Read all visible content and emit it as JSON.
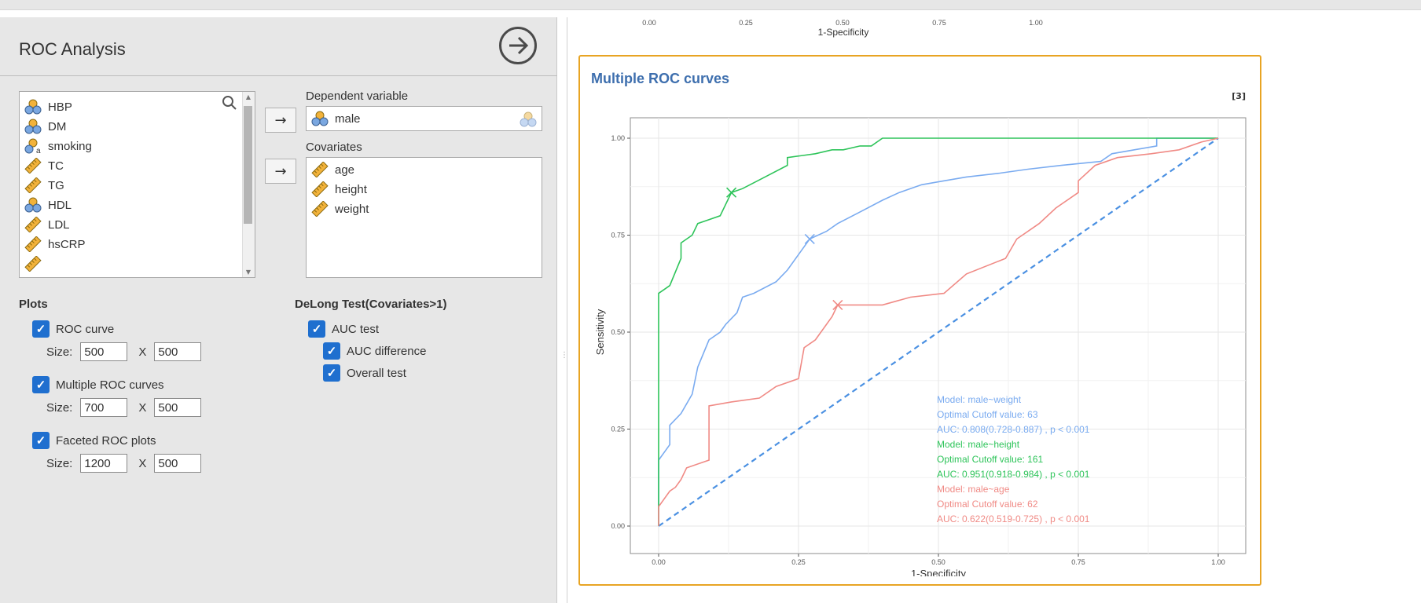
{
  "panel": {
    "title": "ROC Analysis"
  },
  "variables": [
    {
      "name": "HBP",
      "icon": "nominal-icon"
    },
    {
      "name": "DM",
      "icon": "nominal-icon"
    },
    {
      "name": "smoking",
      "icon": "nominal-text-icon"
    },
    {
      "name": "TC",
      "icon": "continuous-icon"
    },
    {
      "name": "TG",
      "icon": "continuous-icon"
    },
    {
      "name": "HDL",
      "icon": "nominal-icon"
    },
    {
      "name": "LDL",
      "icon": "continuous-icon"
    },
    {
      "name": "hsCRP",
      "icon": "continuous-icon"
    }
  ],
  "dependent": {
    "label": "Dependent variable",
    "value": "male"
  },
  "covariates": {
    "label": "Covariates",
    "items": [
      "age",
      "height",
      "weight"
    ]
  },
  "arrow_label": "→",
  "plots": {
    "title": "Plots",
    "roc_curve": {
      "label": "ROC curve",
      "checked": true,
      "width": "500",
      "height": "500"
    },
    "multiple_roc": {
      "label": "Multiple ROC curves",
      "checked": true,
      "width": "700",
      "height": "500"
    },
    "faceted_roc": {
      "label": "Faceted ROC plots",
      "checked": true,
      "width": "1200",
      "height": "500"
    },
    "size_label": "Size:",
    "x_label": "X"
  },
  "delong": {
    "title": "DeLong Test(Covariates>1)",
    "auc_test": "AUC test",
    "auc_difference": "AUC difference",
    "overall_test": "Overall test"
  },
  "prev_plot": {
    "ticks": [
      "0.00",
      "0.25",
      "0.50",
      "0.75",
      "1.00"
    ],
    "xlabel": "1-Specificity"
  },
  "result": {
    "title": "Multiple ROC curves",
    "ref": "[3]"
  },
  "chart_data": {
    "type": "line",
    "xlabel": "1-Specificity",
    "ylabel": "Sensitivity",
    "xlim": [
      0,
      1
    ],
    "ylim": [
      0,
      1
    ],
    "xticks": [
      "0.00",
      "0.25",
      "0.50",
      "0.75",
      "1.00"
    ],
    "yticks": [
      "0.00",
      "0.25",
      "0.50",
      "0.75",
      "1.00"
    ],
    "grid": true,
    "colors": {
      "weight": "#7aabf0",
      "height": "#2ec45a",
      "age": "#f08a85",
      "diagonal": "#4a90e2"
    },
    "series": [
      {
        "key": "weight",
        "color": "#7aabf0",
        "x": [
          0,
          0,
          0.02,
          0.02,
          0.04,
          0.06,
          0.07,
          0.09,
          0.11,
          0.12,
          0.14,
          0.15,
          0.17,
          0.21,
          0.23,
          0.25,
          0.27,
          0.3,
          0.32,
          0.36,
          0.4,
          0.43,
          0.47,
          0.51,
          0.55,
          0.61,
          0.66,
          0.72,
          0.79,
          0.81,
          0.85,
          0.89,
          0.89,
          0.97,
          1.0
        ],
        "y": [
          0,
          0.17,
          0.21,
          0.26,
          0.29,
          0.34,
          0.41,
          0.48,
          0.5,
          0.52,
          0.55,
          0.59,
          0.6,
          0.63,
          0.66,
          0.7,
          0.74,
          0.76,
          0.78,
          0.81,
          0.84,
          0.86,
          0.88,
          0.89,
          0.9,
          0.91,
          0.92,
          0.93,
          0.94,
          0.96,
          0.97,
          0.98,
          1.0,
          1.0,
          1.0
        ],
        "cutoff_point": [
          0.27,
          0.74
        ],
        "legend": [
          "Model: male~weight",
          "Optimal Cutoff value:  63",
          " AUC:  0.808(0.728-0.887) , p < 0.001"
        ]
      },
      {
        "key": "height",
        "color": "#2ec45a",
        "x": [
          0,
          0,
          0.01,
          0.02,
          0.04,
          0.04,
          0.06,
          0.07,
          0.09,
          0.11,
          0.13,
          0.15,
          0.19,
          0.23,
          0.23,
          0.28,
          0.31,
          0.33,
          0.36,
          0.38,
          0.4,
          0.45,
          0.55,
          0.65,
          0.89,
          1.0
        ],
        "y": [
          0,
          0.6,
          0.61,
          0.62,
          0.69,
          0.73,
          0.75,
          0.78,
          0.79,
          0.8,
          0.86,
          0.87,
          0.9,
          0.93,
          0.95,
          0.96,
          0.97,
          0.97,
          0.98,
          0.98,
          1.0,
          1.0,
          1.0,
          1.0,
          1.0,
          1.0
        ],
        "cutoff_point": [
          0.13,
          0.86
        ],
        "legend": [
          "Model: male~height",
          "Optimal Cutoff value:  161",
          " AUC:  0.951(0.918-0.984) , p < 0.001"
        ]
      },
      {
        "key": "age",
        "color": "#f08a85",
        "x": [
          0,
          0,
          0.02,
          0.03,
          0.04,
          0.05,
          0.09,
          0.09,
          0.13,
          0.18,
          0.21,
          0.25,
          0.26,
          0.28,
          0.29,
          0.31,
          0.32,
          0.4,
          0.45,
          0.51,
          0.55,
          0.62,
          0.64,
          0.68,
          0.71,
          0.75,
          0.75,
          0.78,
          0.82,
          0.88,
          0.93,
          0.97,
          1.0
        ],
        "y": [
          0,
          0.05,
          0.09,
          0.1,
          0.12,
          0.15,
          0.17,
          0.31,
          0.32,
          0.33,
          0.36,
          0.38,
          0.46,
          0.48,
          0.5,
          0.54,
          0.57,
          0.57,
          0.59,
          0.6,
          0.65,
          0.69,
          0.74,
          0.78,
          0.82,
          0.86,
          0.89,
          0.93,
          0.95,
          0.96,
          0.97,
          0.99,
          1.0
        ],
        "cutoff_point": [
          0.32,
          0.57
        ],
        "legend": [
          "Model: male~age",
          "Optimal Cutoff value:  62",
          " AUC:  0.622(0.519-0.725) , p < 0.001"
        ]
      }
    ]
  }
}
